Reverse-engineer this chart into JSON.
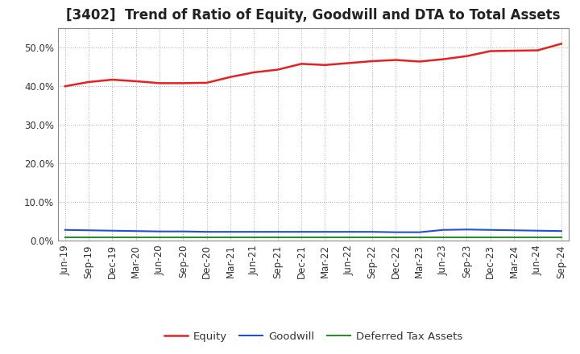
{
  "title": "[3402]  Trend of Ratio of Equity, Goodwill and DTA to Total Assets",
  "x_labels": [
    "Jun-19",
    "Sep-19",
    "Dec-19",
    "Mar-20",
    "Jun-20",
    "Sep-20",
    "Dec-20",
    "Mar-21",
    "Jun-21",
    "Sep-21",
    "Dec-21",
    "Mar-22",
    "Jun-22",
    "Sep-22",
    "Dec-22",
    "Mar-23",
    "Jun-23",
    "Sep-23",
    "Dec-23",
    "Mar-24",
    "Jun-24",
    "Sep-24"
  ],
  "equity": [
    0.4,
    0.411,
    0.417,
    0.413,
    0.408,
    0.408,
    0.409,
    0.424,
    0.436,
    0.443,
    0.458,
    0.455,
    0.46,
    0.465,
    0.468,
    0.464,
    0.47,
    0.478,
    0.491,
    0.492,
    0.493,
    0.51
  ],
  "goodwill": [
    0.028,
    0.027,
    0.026,
    0.025,
    0.024,
    0.024,
    0.023,
    0.023,
    0.023,
    0.023,
    0.023,
    0.023,
    0.023,
    0.023,
    0.022,
    0.022,
    0.028,
    0.029,
    0.028,
    0.027,
    0.026,
    0.025
  ],
  "dta": [
    0.009,
    0.009,
    0.009,
    0.009,
    0.009,
    0.009,
    0.009,
    0.009,
    0.009,
    0.009,
    0.009,
    0.009,
    0.009,
    0.009,
    0.009,
    0.009,
    0.009,
    0.009,
    0.009,
    0.009,
    0.009,
    0.009
  ],
  "equity_color": "#e82020",
  "goodwill_color": "#1e50d8",
  "dta_color": "#2e8b2e",
  "bg_color": "#ffffff",
  "plot_bg_color": "#ffffff",
  "grid_color": "#b0b0b0",
  "ylim": [
    0.0,
    0.55
  ],
  "yticks": [
    0.0,
    0.1,
    0.2,
    0.3,
    0.4,
    0.5
  ],
  "legend_labels": [
    "Equity",
    "Goodwill",
    "Deferred Tax Assets"
  ],
  "title_fontsize": 12,
  "tick_fontsize": 8.5,
  "legend_fontsize": 9.5
}
